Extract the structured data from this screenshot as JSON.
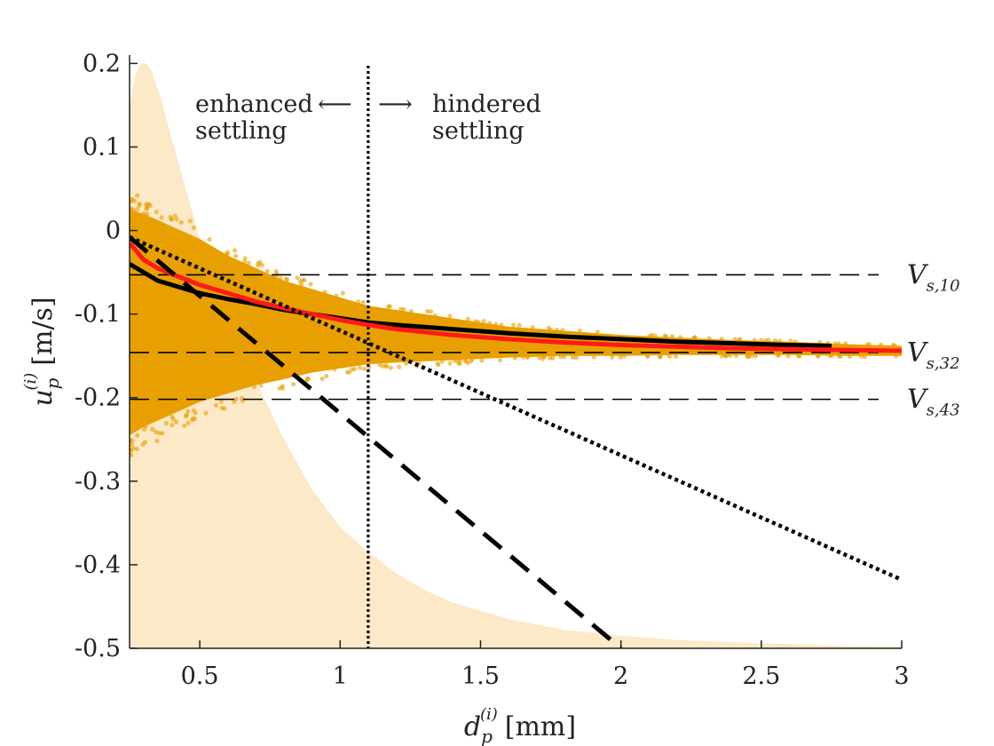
{
  "chart_data": {
    "type": "scatter",
    "title": "",
    "xlabel": {
      "symbol": "d",
      "sub": "p",
      "sup": "(i)",
      "unit": "[mm]"
    },
    "ylabel": {
      "symbol": "u",
      "sub": "p",
      "sup": "(i)",
      "unit": "[m/s]"
    },
    "xlim": [
      0.25,
      3.0
    ],
    "ylim": [
      -0.5,
      0.21
    ],
    "x_ticks": [
      0.5,
      1,
      1.5,
      2,
      2.5,
      3
    ],
    "x_tick_labels": [
      "0.5",
      "1",
      "1.5",
      "2",
      "2.5",
      "3"
    ],
    "y_ticks": [
      0.2,
      0.1,
      0,
      -0.1,
      -0.2,
      -0.3,
      -0.4,
      -0.5
    ],
    "y_tick_labels": [
      "0.2",
      "0.1",
      "0",
      "-0.1",
      "-0.2",
      "-0.3",
      "-0.4",
      "-0.5"
    ],
    "grid": false,
    "colors": {
      "scatter": "#e8a000",
      "distribution": "#fbe9c7",
      "red_curve": "#ff1a1a",
      "black": "#000000"
    },
    "size_distribution_shading": {
      "description": "particle size distribution (scaled)",
      "x": [
        0.25,
        0.27,
        0.29,
        0.31,
        0.33,
        0.36,
        0.4,
        0.45,
        0.5,
        0.6,
        0.7,
        0.8,
        0.9,
        1.0,
        1.1,
        1.2,
        1.3,
        1.4,
        1.5,
        1.6,
        1.8,
        2.0,
        2.2,
        2.5,
        2.8,
        3.0
      ],
      "y": [
        0.15,
        0.185,
        0.2,
        0.2,
        0.19,
        0.16,
        0.11,
        0.05,
        -0.01,
        -0.1,
        -0.18,
        -0.25,
        -0.31,
        -0.355,
        -0.385,
        -0.41,
        -0.43,
        -0.445,
        -0.455,
        -0.465,
        -0.478,
        -0.485,
        -0.49,
        -0.494,
        -0.497,
        -0.498
      ]
    },
    "scatter_envelope": {
      "description": "particle velocity scatter cloud (upper and lower bounds)",
      "x": [
        0.25,
        0.3,
        0.4,
        0.5,
        0.6,
        0.7,
        0.8,
        0.9,
        1.0,
        1.1,
        1.2,
        1.4,
        1.6,
        1.8,
        2.0,
        2.2,
        2.4,
        2.6,
        2.8,
        3.0
      ],
      "upper": [
        0.025,
        0.02,
        0.005,
        -0.01,
        -0.03,
        -0.045,
        -0.06,
        -0.07,
        -0.08,
        -0.09,
        -0.095,
        -0.105,
        -0.115,
        -0.12,
        -0.125,
        -0.128,
        -0.131,
        -0.133,
        -0.136,
        -0.138
      ],
      "lower": [
        -0.245,
        -0.235,
        -0.22,
        -0.205,
        -0.195,
        -0.185,
        -0.178,
        -0.17,
        -0.165,
        -0.16,
        -0.158,
        -0.155,
        -0.152,
        -0.15,
        -0.15,
        -0.149,
        -0.149,
        -0.149,
        -0.15,
        -0.15
      ]
    },
    "series": [
      {
        "name": "mean velocity (black)",
        "style": "solid",
        "x": [
          0.25,
          0.3,
          0.35,
          0.4,
          0.45,
          0.5,
          0.6,
          0.7,
          0.8,
          0.9,
          1.0,
          1.1,
          1.2,
          1.4,
          1.6,
          1.8,
          2.0,
          2.2,
          2.4,
          2.6,
          2.75
        ],
        "y": [
          -0.04,
          -0.05,
          -0.06,
          -0.065,
          -0.07,
          -0.075,
          -0.082,
          -0.088,
          -0.095,
          -0.1,
          -0.105,
          -0.11,
          -0.113,
          -0.118,
          -0.123,
          -0.127,
          -0.13,
          -0.133,
          -0.135,
          -0.137,
          -0.138
        ]
      },
      {
        "name": "mean velocity (red)",
        "style": "solid",
        "x": [
          0.25,
          0.3,
          0.35,
          0.4,
          0.5,
          0.6,
          0.7,
          0.8,
          0.9,
          1.0,
          1.1,
          1.2,
          1.4,
          1.6,
          1.8,
          2.0,
          2.2,
          2.4,
          2.6,
          2.8,
          3.0
        ],
        "y": [
          -0.015,
          -0.035,
          -0.045,
          -0.052,
          -0.065,
          -0.075,
          -0.085,
          -0.093,
          -0.1,
          -0.107,
          -0.113,
          -0.118,
          -0.125,
          -0.13,
          -0.134,
          -0.137,
          -0.139,
          -0.141,
          -0.142,
          -0.143,
          -0.144
        ]
      },
      {
        "name": "linear trend (dashed)",
        "style": "dashed",
        "x": [
          0.25,
          2.0
        ],
        "y": [
          -0.008,
          -0.5
        ]
      },
      {
        "name": "linear trend (dotted)",
        "style": "dotted",
        "x": [
          0.25,
          3.0
        ],
        "y": [
          -0.008,
          -0.418
        ]
      }
    ],
    "reference_lines": [
      {
        "label_main": "V",
        "label_sub": "s,10",
        "y": -0.053
      },
      {
        "label_main": "V",
        "label_sub": "s,32",
        "y": -0.146
      },
      {
        "label_main": "V",
        "label_sub": "s,43",
        "y": -0.202
      }
    ],
    "threshold_line": {
      "x": 1.1
    },
    "annotations": {
      "left_line1": "enhanced",
      "left_line2": "settling",
      "left_arrow": "⟵",
      "right_arrow": "⟶",
      "right_line1": "hindered",
      "right_line2": "settling"
    }
  }
}
